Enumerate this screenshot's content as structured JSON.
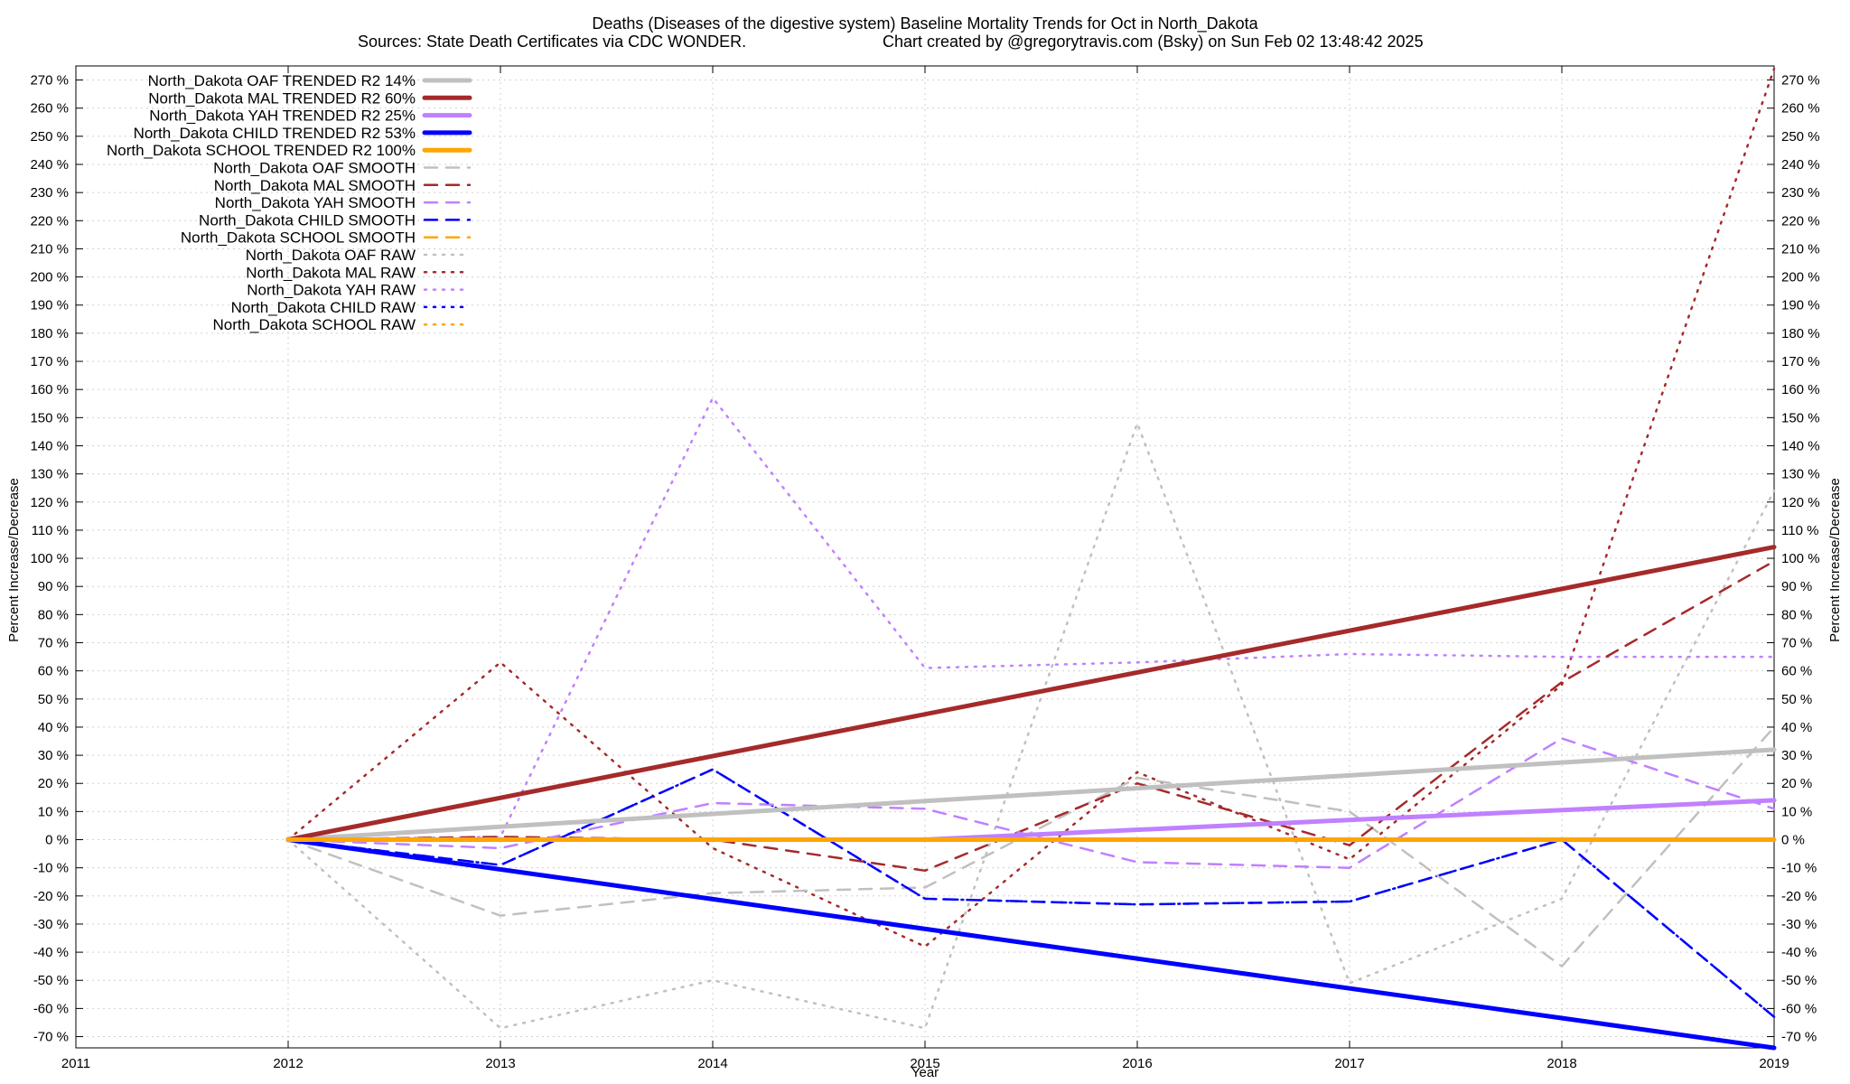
{
  "chart_data": {
    "type": "line",
    "title": "Deaths (Diseases of the digestive system)  Baseline Mortality Trends for Oct in North_Dakota",
    "subtitle_left": "Sources: State Death Certificates via CDC WONDER.",
    "subtitle_right": "Chart created by @gregorytravis.com (Bsky) on Sun Feb 02 13:48:42 2025",
    "xlabel": "Year",
    "ylabel": "Percent Increase/Decrease",
    "y2label": "Percent Increase/Decrease",
    "xlim": [
      2011,
      2019
    ],
    "ylim": [
      -74,
      275
    ],
    "x_ticks": [
      2011,
      2012,
      2013,
      2014,
      2015,
      2016,
      2017,
      2018,
      2019
    ],
    "y_ticks": [
      -70,
      -60,
      -50,
      -40,
      -30,
      -20,
      -10,
      0,
      10,
      20,
      30,
      40,
      50,
      60,
      70,
      80,
      90,
      100,
      110,
      120,
      130,
      140,
      150,
      160,
      170,
      180,
      190,
      200,
      210,
      220,
      230,
      240,
      250,
      260,
      270
    ],
    "y_tick_suffix": " %",
    "grid": true,
    "legend_position": "top-left",
    "series": [
      {
        "name": "North_Dakota OAF TRENDED R2  14%",
        "color": "#c0c0c0",
        "style": "solid",
        "x": [
          2012,
          2019
        ],
        "values": [
          0,
          32
        ]
      },
      {
        "name": "North_Dakota MAL TRENDED R2  60%",
        "color": "#a52a2a",
        "style": "solid",
        "x": [
          2012,
          2019
        ],
        "values": [
          0,
          104
        ]
      },
      {
        "name": "North_Dakota YAH TRENDED R2  25%",
        "color": "#c080ff",
        "style": "solid",
        "x": [
          2012,
          2015,
          2019
        ],
        "values": [
          0,
          0,
          14
        ]
      },
      {
        "name": "North_Dakota CHILD TRENDED R2  53%",
        "color": "#0000ff",
        "style": "solid",
        "x": [
          2012,
          2019
        ],
        "values": [
          0,
          -74
        ]
      },
      {
        "name": "North_Dakota SCHOOL TRENDED R2 100%",
        "color": "#ffa500",
        "style": "solid",
        "x": [
          2012,
          2019
        ],
        "values": [
          0,
          0
        ]
      },
      {
        "name": "North_Dakota OAF SMOOTH",
        "color": "#c0c0c0",
        "style": "dashed",
        "x": [
          2012,
          2013,
          2014,
          2015,
          2016,
          2017,
          2018,
          2019
        ],
        "values": [
          0,
          -27,
          -19,
          -17,
          22,
          10,
          -45,
          40
        ]
      },
      {
        "name": "North_Dakota MAL SMOOTH",
        "color": "#a52a2a",
        "style": "dashed",
        "x": [
          2012,
          2013,
          2014,
          2015,
          2016,
          2017,
          2018,
          2019
        ],
        "values": [
          0,
          1,
          0,
          -11,
          20,
          -2,
          56,
          99
        ]
      },
      {
        "name": "North_Dakota YAH SMOOTH",
        "color": "#c080ff",
        "style": "dashed",
        "x": [
          2012,
          2013,
          2014,
          2015,
          2016,
          2017,
          2018,
          2019
        ],
        "values": [
          0,
          -3,
          13,
          11,
          -8,
          -10,
          36,
          11
        ]
      },
      {
        "name": "North_Dakota CHILD SMOOTH",
        "color": "#0000ff",
        "style": "dashed",
        "x": [
          2012,
          2013,
          2014,
          2015,
          2016,
          2017,
          2018,
          2019
        ],
        "values": [
          0,
          -9,
          25,
          -21,
          -23,
          -22,
          0,
          -63
        ]
      },
      {
        "name": "North_Dakota SCHOOL SMOOTH",
        "color": "#ffa500",
        "style": "dashed",
        "x": [
          2012,
          2013,
          2014,
          2015,
          2016,
          2017,
          2018,
          2019
        ],
        "values": [
          0,
          0,
          0,
          0,
          0,
          0,
          0,
          0
        ]
      },
      {
        "name": "North_Dakota OAF RAW",
        "color": "#c0c0c0",
        "style": "dotted",
        "x": [
          2012,
          2013,
          2014,
          2015,
          2016,
          2017,
          2018,
          2019
        ],
        "values": [
          0,
          -67,
          -50,
          -67,
          148,
          -51,
          -21,
          124
        ]
      },
      {
        "name": "North_Dakota MAL RAW",
        "color": "#a52a2a",
        "style": "dotted",
        "x": [
          2012,
          2013,
          2014,
          2015,
          2016,
          2017,
          2018,
          2019
        ],
        "values": [
          0,
          63,
          -3,
          -38,
          24,
          -7,
          55,
          274
        ]
      },
      {
        "name": "North_Dakota YAH RAW",
        "color": "#c080ff",
        "style": "dotted",
        "x": [
          2012,
          2013,
          2014,
          2015,
          2016,
          2017,
          2018,
          2019
        ],
        "values": [
          0,
          1,
          157,
          61,
          63,
          66,
          65,
          65
        ]
      },
      {
        "name": "North_Dakota CHILD RAW",
        "color": "#0000ff",
        "style": "dotted",
        "x": [
          2012,
          2013,
          2014,
          2015,
          2016,
          2017,
          2018,
          2019
        ],
        "values": [
          0,
          -9,
          25,
          -21,
          -23,
          -22,
          0,
          -63
        ]
      },
      {
        "name": "North_Dakota SCHOOL RAW",
        "color": "#ffa500",
        "style": "dotted",
        "x": [
          2012,
          2013,
          2014,
          2015,
          2016,
          2017,
          2018,
          2019
        ],
        "values": [
          0,
          0,
          0,
          0,
          0,
          0,
          0,
          0
        ]
      }
    ]
  }
}
